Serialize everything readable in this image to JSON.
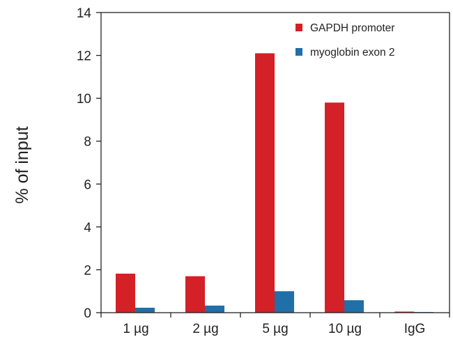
{
  "chart_data": {
    "type": "bar",
    "title": "",
    "xlabel": "",
    "ylabel": "% of input",
    "categories": [
      "1 µg",
      "2 µg",
      "5 µg",
      "10 µg",
      "IgG"
    ],
    "series": [
      {
        "name": "GAPDH promoter",
        "color": "#d42027",
        "values": [
          1.82,
          1.7,
          12.1,
          9.8,
          0.05
        ]
      },
      {
        "name": "myoglobin exon 2",
        "color": "#1f6fa8",
        "values": [
          0.23,
          0.33,
          1.0,
          0.58,
          0.03
        ]
      }
    ],
    "ylim": [
      0,
      14
    ],
    "yticks": [
      0,
      2,
      4,
      6,
      8,
      10,
      12,
      14
    ],
    "grid": false,
    "legend_position": "top-right"
  }
}
